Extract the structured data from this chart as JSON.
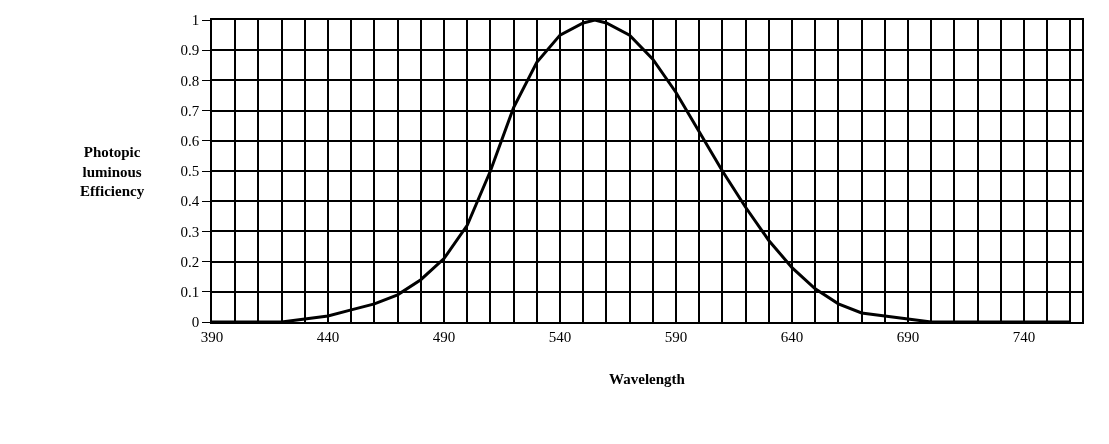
{
  "chart_data": {
    "type": "line",
    "xlabel": "Wavelength",
    "ylabel": "Photopic luminous Efficiency",
    "x": [
      390,
      400,
      410,
      420,
      430,
      440,
      450,
      460,
      470,
      480,
      490,
      500,
      510,
      520,
      530,
      540,
      550,
      555,
      560,
      570,
      580,
      590,
      600,
      610,
      620,
      630,
      640,
      650,
      660,
      670,
      680,
      690,
      700,
      710,
      720,
      730,
      740,
      750,
      760
    ],
    "series": [
      {
        "color": "#000000",
        "values": [
          0,
          0,
          0,
          0,
          0.01,
          0.02,
          0.04,
          0.06,
          0.09,
          0.14,
          0.21,
          0.32,
          0.5,
          0.71,
          0.86,
          0.95,
          0.99,
          1,
          0.99,
          0.95,
          0.87,
          0.76,
          0.63,
          0.5,
          0.38,
          0.27,
          0.18,
          0.11,
          0.06,
          0.03,
          0.02,
          0.01,
          0,
          0,
          0,
          0,
          0,
          0,
          0
        ]
      }
    ],
    "xlim": [
      390,
      765
    ],
    "xticks": [
      390,
      {
        "value": 400,
        "label": null
      },
      {
        "value": 410,
        "label": null
      },
      {
        "value": 420,
        "label": null
      },
      {
        "value": 430,
        "label": null
      },
      440,
      {
        "value": 450,
        "label": null
      },
      {
        "value": 460,
        "label": null
      },
      {
        "value": 470,
        "label": null
      },
      {
        "value": 480,
        "label": null
      },
      490,
      {
        "value": 500,
        "label": null
      },
      {
        "value": 510,
        "label": null
      },
      {
        "value": 520,
        "label": null
      },
      {
        "value": 530,
        "label": null
      },
      540,
      {
        "value": 550,
        "label": null
      },
      {
        "value": 560,
        "label": null
      },
      {
        "value": 570,
        "label": null
      },
      {
        "value": 580,
        "label": null
      },
      590,
      {
        "value": 600,
        "label": null
      },
      {
        "value": 610,
        "label": null
      },
      {
        "value": 620,
        "label": null
      },
      {
        "value": 630,
        "label": null
      },
      640,
      {
        "value": 650,
        "label": null
      },
      {
        "value": 660,
        "label": null
      },
      {
        "value": 670,
        "label": null
      },
      {
        "value": 680,
        "label": null
      },
      690,
      {
        "value": 700,
        "label": null
      },
      {
        "value": 710,
        "label": null
      },
      {
        "value": 720,
        "label": null
      },
      {
        "value": 730,
        "label": null
      },
      740,
      {
        "value": 750,
        "label": null
      },
      {
        "value": 760,
        "label": null
      }
    ],
    "ylim": [
      0,
      1
    ],
    "yticks": [
      0,
      0.1,
      0.2,
      0.3,
      0.4,
      0.5,
      0.6,
      0.7,
      0.8,
      0.9,
      1
    ],
    "grid": true,
    "marker": "none",
    "line_style": "solid"
  }
}
